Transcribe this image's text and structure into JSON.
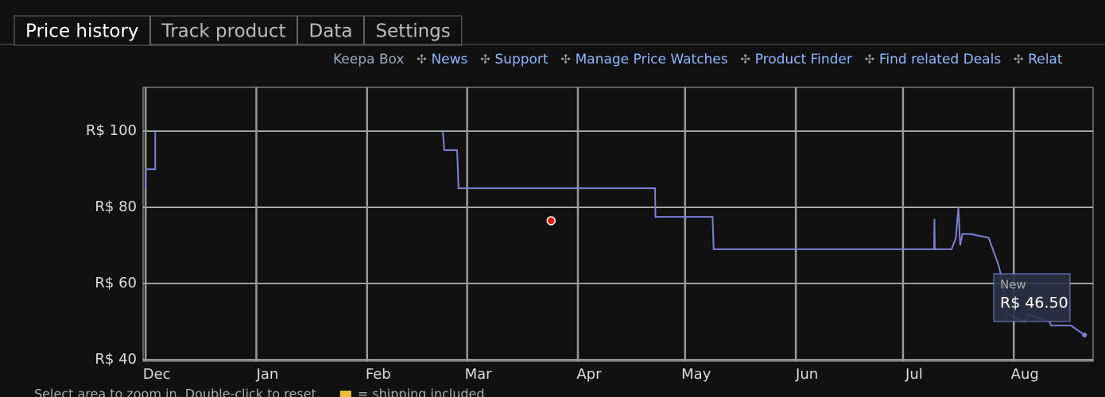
{
  "tabs": [
    "Price history",
    "Track product",
    "Data",
    "Settings"
  ],
  "active_tab": 0,
  "links": [
    "Keepa Box",
    "News",
    "Support",
    "Manage Price Watches",
    "Product Finder",
    "Find related Deals",
    "Relat"
  ],
  "footer": {
    "hint": "Select area to zoom in. Double-click to reset.",
    "legend": "= shipping included"
  },
  "chart_data": {
    "type": "line",
    "xlim": [
      -0.7,
      265.2
    ],
    "ylim": [
      39.6,
      111.5
    ],
    "xticks": [
      {
        "value": 0,
        "label": "Dec"
      },
      {
        "value": 31,
        "label": "Jan"
      },
      {
        "value": 62,
        "label": "Feb"
      },
      {
        "value": 90,
        "label": "Mar"
      },
      {
        "value": 121,
        "label": "Apr"
      },
      {
        "value": 151,
        "label": "May"
      },
      {
        "value": 182,
        "label": "Jun"
      },
      {
        "value": 212,
        "label": "Jul"
      },
      {
        "value": 243,
        "label": "Aug"
      }
    ],
    "yticks": [
      {
        "value": 40,
        "label": "R$ 40"
      },
      {
        "value": 60,
        "label": "R$ 60"
      },
      {
        "value": 80,
        "label": "R$ 80"
      },
      {
        "value": 100,
        "label": "R$ 100"
      }
    ],
    "grid": true,
    "series": [
      {
        "name": "New",
        "color": "#7d7ed6",
        "x": [
          0,
          0.1,
          2.7,
          2.7,
          40,
          83.2,
          83.6,
          87.2,
          87.6,
          142.6,
          142.7,
          158.7,
          159,
          220.7,
          220.8,
          220.9,
          225.6,
          226.0,
          226.8,
          227.5,
          228,
          228.6,
          229,
          231,
          236,
          237.5,
          238.7,
          240,
          240.6,
          241.5,
          243.5,
          246,
          247,
          253,
          253.5,
          259,
          260.5,
          262.8
        ],
        "values": [
          85,
          90,
          90,
          100,
          null,
          100,
          95,
          95,
          85,
          85,
          77.5,
          77.5,
          69,
          69,
          77,
          69,
          69,
          70,
          72,
          80,
          70,
          73,
          73,
          73,
          72,
          68,
          65,
          60,
          55,
          52,
          51,
          50,
          52,
          50,
          49,
          49,
          48,
          46.5
        ]
      }
    ],
    "markers": [
      {
        "x": 113.5,
        "y": 76.5,
        "color": "#ee1111"
      }
    ],
    "tooltip": {
      "value": 46.5,
      "label": "R$ 46.50"
    }
  }
}
